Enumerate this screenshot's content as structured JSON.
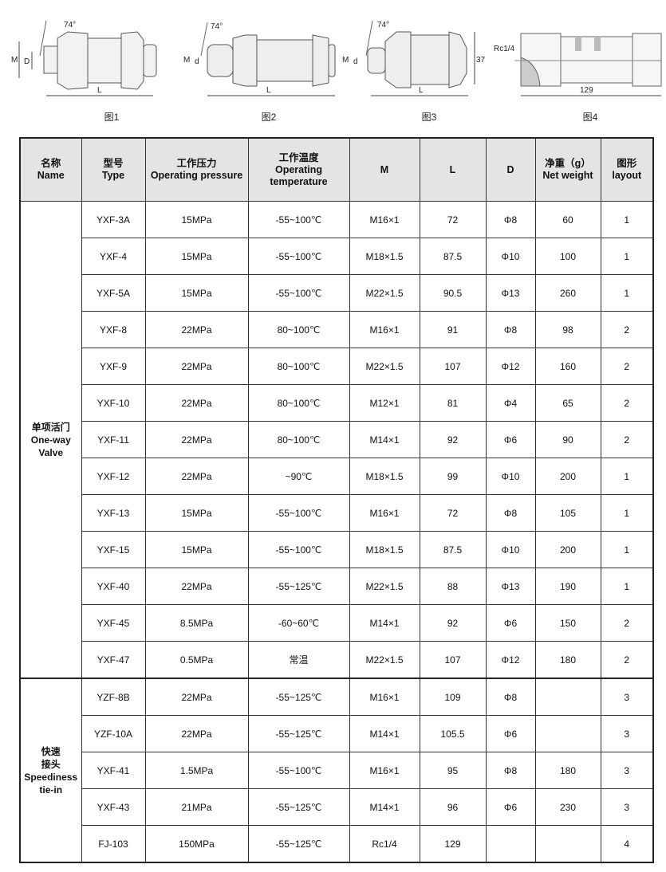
{
  "figures": [
    {
      "caption": "图1",
      "angle": "74°",
      "labels": [
        "M",
        "D"
      ],
      "length": "L"
    },
    {
      "caption": "图2",
      "angle": "74°",
      "labels": [
        "M",
        "d"
      ],
      "length": "L"
    },
    {
      "caption": "图3",
      "angle": "74°",
      "labels": [
        "M",
        "d"
      ],
      "length": "L",
      "height": "37"
    },
    {
      "caption": "图4",
      "thread": "Rc1/4",
      "length": "129"
    }
  ],
  "table": {
    "headers": [
      {
        "cn": "名称",
        "en": "Name"
      },
      {
        "cn": "型号",
        "en": "Type"
      },
      {
        "cn": "工作压力",
        "en": "Operating pressure"
      },
      {
        "cn": "工作温度",
        "en": "Operating temperature"
      },
      {
        "cn": "",
        "en": "M"
      },
      {
        "cn": "",
        "en": "L"
      },
      {
        "cn": "",
        "en": "D"
      },
      {
        "cn": "净重（g）",
        "en": "Net weight"
      },
      {
        "cn": "图形",
        "en": "layout"
      }
    ],
    "groups": [
      {
        "name_cn": "单项活门",
        "name_en1": "One-way",
        "name_en2": "Valve",
        "rows": [
          [
            "YXF-3A",
            "15MPa",
            "-55~100℃",
            "M16×1",
            "72",
            "Φ8",
            "60",
            "1"
          ],
          [
            "YXF-4",
            "15MPa",
            "-55~100℃",
            "M18×1.5",
            "87.5",
            "Φ10",
            "100",
            "1"
          ],
          [
            "YXF-5A",
            "15MPa",
            "-55~100℃",
            "M22×1.5",
            "90.5",
            "Φ13",
            "260",
            "1"
          ],
          [
            "YXF-8",
            "22MPa",
            "80~100℃",
            "M16×1",
            "91",
            "Φ8",
            "98",
            "2"
          ],
          [
            "YXF-9",
            "22MPa",
            "80~100℃",
            "M22×1.5",
            "107",
            "Φ12",
            "160",
            "2"
          ],
          [
            "YXF-10",
            "22MPa",
            "80~100℃",
            "M12×1",
            "81",
            "Φ4",
            "65",
            "2"
          ],
          [
            "YXF-11",
            "22MPa",
            "80~100℃",
            "M14×1",
            "92",
            "Φ6",
            "90",
            "2"
          ],
          [
            "YXF-12",
            "22MPa",
            "~90℃",
            "M18×1.5",
            "99",
            "Φ10",
            "200",
            "1"
          ],
          [
            "YXF-13",
            "15MPa",
            "-55~100℃",
            "M16×1",
            "72",
            "Φ8",
            "105",
            "1"
          ],
          [
            "YXF-15",
            "15MPa",
            "-55~100℃",
            "M18×1.5",
            "87.5",
            "Φ10",
            "200",
            "1"
          ],
          [
            "YXF-40",
            "22MPa",
            "-55~125℃",
            "M22×1.5",
            "88",
            "Φ13",
            "190",
            "1"
          ],
          [
            "YXF-45",
            "8.5MPa",
            "-60~60℃",
            "M14×1",
            "92",
            "Φ6",
            "150",
            "2"
          ],
          [
            "YXF-47",
            "0.5MPa",
            "常温",
            "M22×1.5",
            "107",
            "Φ12",
            "180",
            "2"
          ]
        ]
      },
      {
        "name_cn": "快速",
        "name_cn2": "接头",
        "name_en1": "Speediness",
        "name_en2": "tie-in",
        "rows": [
          [
            "YZF-8B",
            "22MPa",
            "-55~125℃",
            "M16×1",
            "109",
            "Φ8",
            "",
            "3"
          ],
          [
            "YZF-10A",
            "22MPa",
            "-55~125℃",
            "M14×1",
            "105.5",
            "Φ6",
            "",
            "3"
          ],
          [
            "YXF-41",
            "1.5MPa",
            "-55~100℃",
            "M16×1",
            "95",
            "Φ8",
            "180",
            "3"
          ],
          [
            "YXF-43",
            "21MPa",
            "-55~125℃",
            "M14×1",
            "96",
            "Φ6",
            "230",
            "3"
          ],
          [
            "FJ-103",
            "150MPa",
            "-55~125℃",
            "Rc1/4",
            "129",
            "",
            "",
            "4"
          ]
        ]
      }
    ]
  }
}
